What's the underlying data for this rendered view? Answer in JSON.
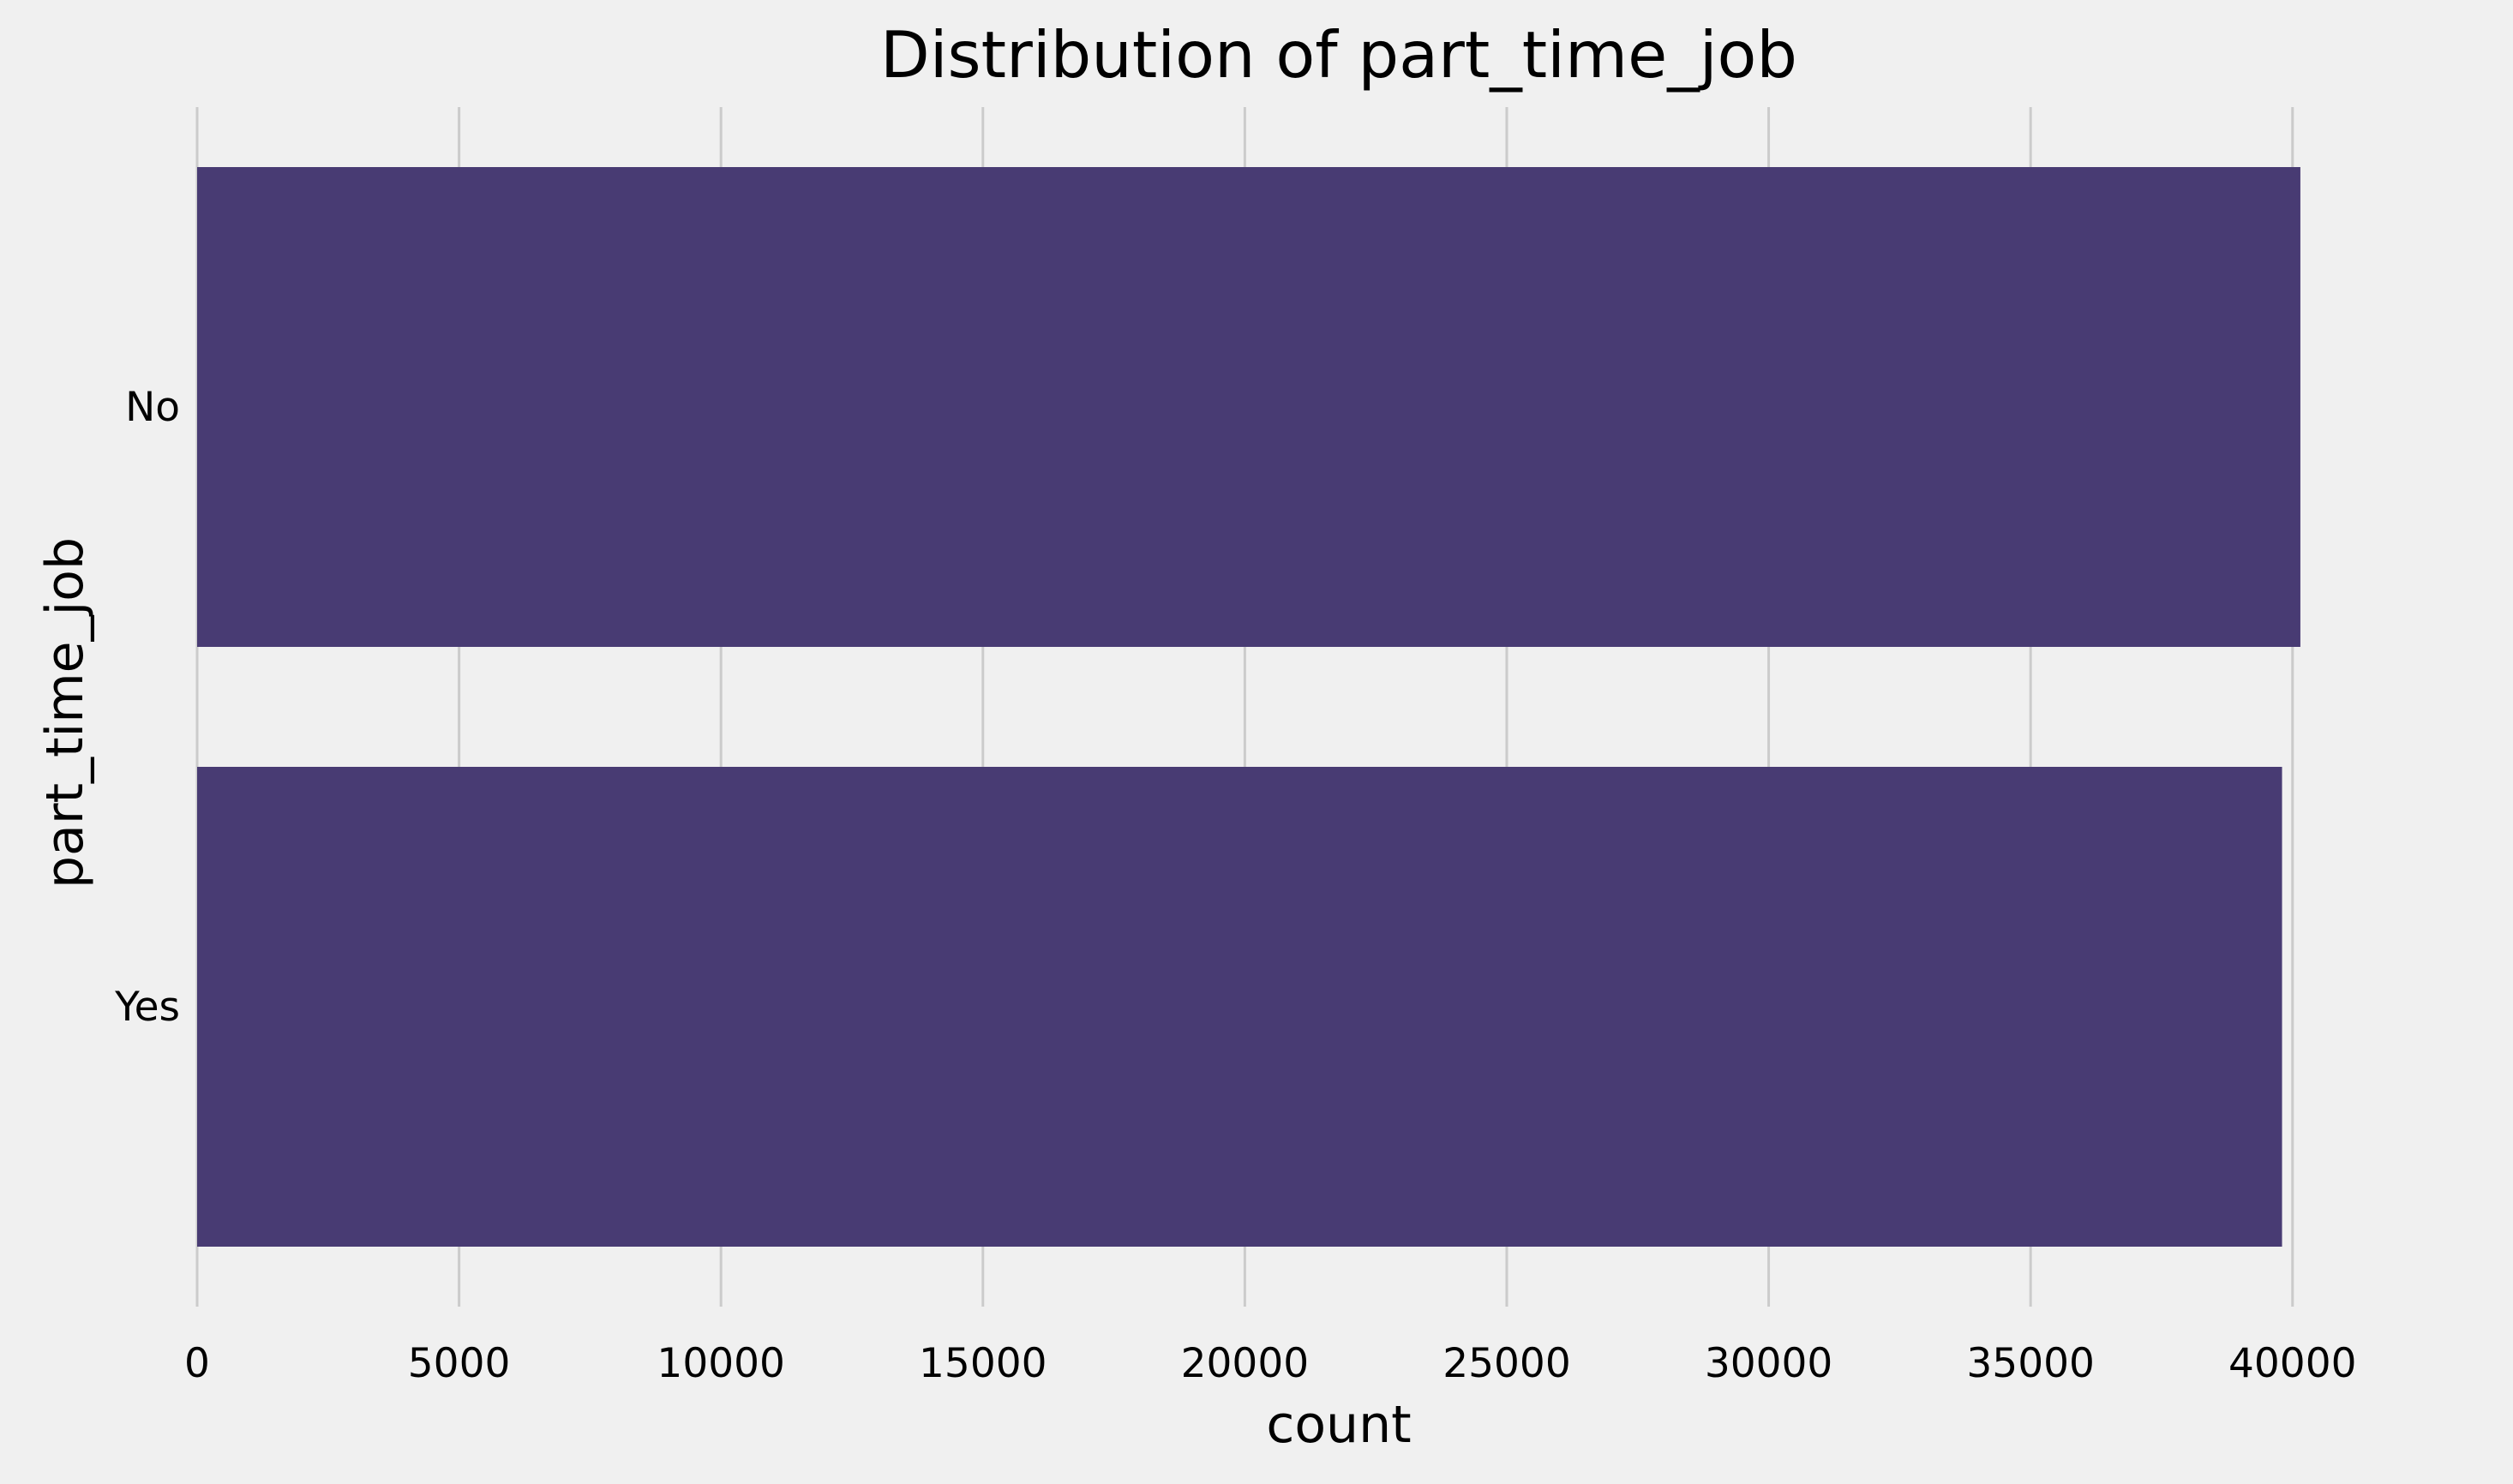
{
  "chart_data": {
    "type": "bar",
    "orientation": "horizontal",
    "title": "Distribution of part_time_job",
    "xlabel": "count",
    "ylabel": "part_time_job",
    "categories": [
      "No",
      "Yes"
    ],
    "values": [
      40150,
      39800
    ],
    "xlim": [
      0,
      42000
    ],
    "xticks": [
      0,
      5000,
      10000,
      15000,
      20000,
      25000,
      30000,
      35000,
      40000
    ],
    "xtick_labels": [
      "0",
      "5000",
      "10000",
      "15000",
      "20000",
      "25000",
      "30000",
      "35000",
      "40000"
    ],
    "grid": "vertical",
    "bar_color": "#483b73",
    "background_color": "#f0f0f0",
    "grid_color": "#cbcbcb"
  }
}
